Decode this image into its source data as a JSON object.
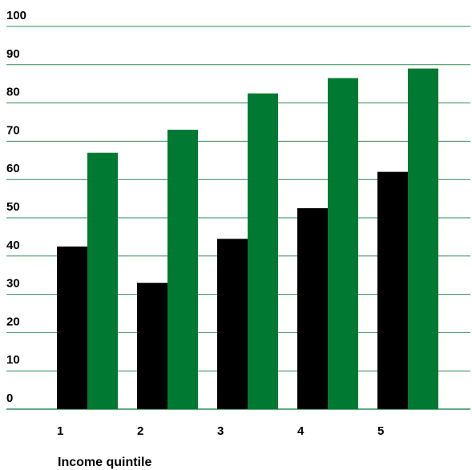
{
  "chart_data": {
    "type": "bar",
    "title": "",
    "xlabel": "Income quintile",
    "ylabel": "",
    "categories": [
      "1",
      "2",
      "3",
      "4",
      "5"
    ],
    "series": [
      {
        "values": [
          42.5,
          33,
          44.5,
          52.5,
          62
        ],
        "color": "#000000"
      },
      {
        "values": [
          67,
          73,
          82.5,
          86.5,
          89
        ],
        "color": "#007a33"
      }
    ],
    "ylim": [
      0,
      100
    ],
    "yticks": [
      0,
      10,
      20,
      30,
      40,
      50,
      60,
      70,
      80,
      90,
      100
    ],
    "grid": true,
    "gridline_color": "#2e8b57",
    "legend": "none"
  }
}
